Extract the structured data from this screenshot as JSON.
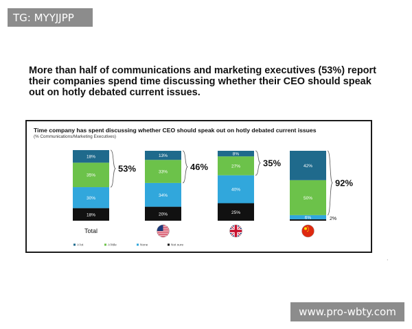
{
  "watermarks": {
    "top_left": "TG: MYYJJPP",
    "bottom_right": "www.pro-wbty.com"
  },
  "headline": "More than half of communications and marketing executives (53%) report their companies spend time discussing whether their CEO should speak out on hotly debated current issues.",
  "colors": {
    "a_lot": "#1f6a8c",
    "a_little": "#6cc24a",
    "none": "#31a7dc",
    "not_sure": "#111111"
  },
  "chart_data": {
    "type": "bar",
    "stacked": true,
    "title": "Time company has spent discussing whether CEO should speak out on hotly debated current issues",
    "subtitle": "(% Communications/Marketing Executives)",
    "categories": [
      "Total",
      "United States",
      "United Kingdom",
      "China"
    ],
    "category_labels": [
      "Total",
      "",
      "",
      ""
    ],
    "category_icons": [
      "",
      "us-flag-icon",
      "uk-flag-icon",
      "china-flag-icon"
    ],
    "series": [
      {
        "name": "Not sure",
        "values": [
          18,
          20,
          25,
          2
        ],
        "labels": [
          "18%",
          "20%",
          "25%",
          "2%"
        ]
      },
      {
        "name": "None",
        "values": [
          30,
          34,
          40,
          6
        ],
        "labels": [
          "30%",
          "34%",
          "40%",
          "6%"
        ]
      },
      {
        "name": "A little",
        "values": [
          35,
          33,
          27,
          50
        ],
        "labels": [
          "35%",
          "33%",
          "27%",
          "50%"
        ]
      },
      {
        "name": "A lot",
        "values": [
          18,
          13,
          8,
          42
        ],
        "labels": [
          "18%",
          "13%",
          "8%",
          "42%"
        ]
      }
    ],
    "callouts": [
      "53%",
      "46%",
      "35%",
      "92%"
    ],
    "legend": [
      "A lot",
      "A little",
      "None",
      "Not sure"
    ],
    "legend_position": "bottom-left",
    "ylim": [
      0,
      100
    ]
  }
}
